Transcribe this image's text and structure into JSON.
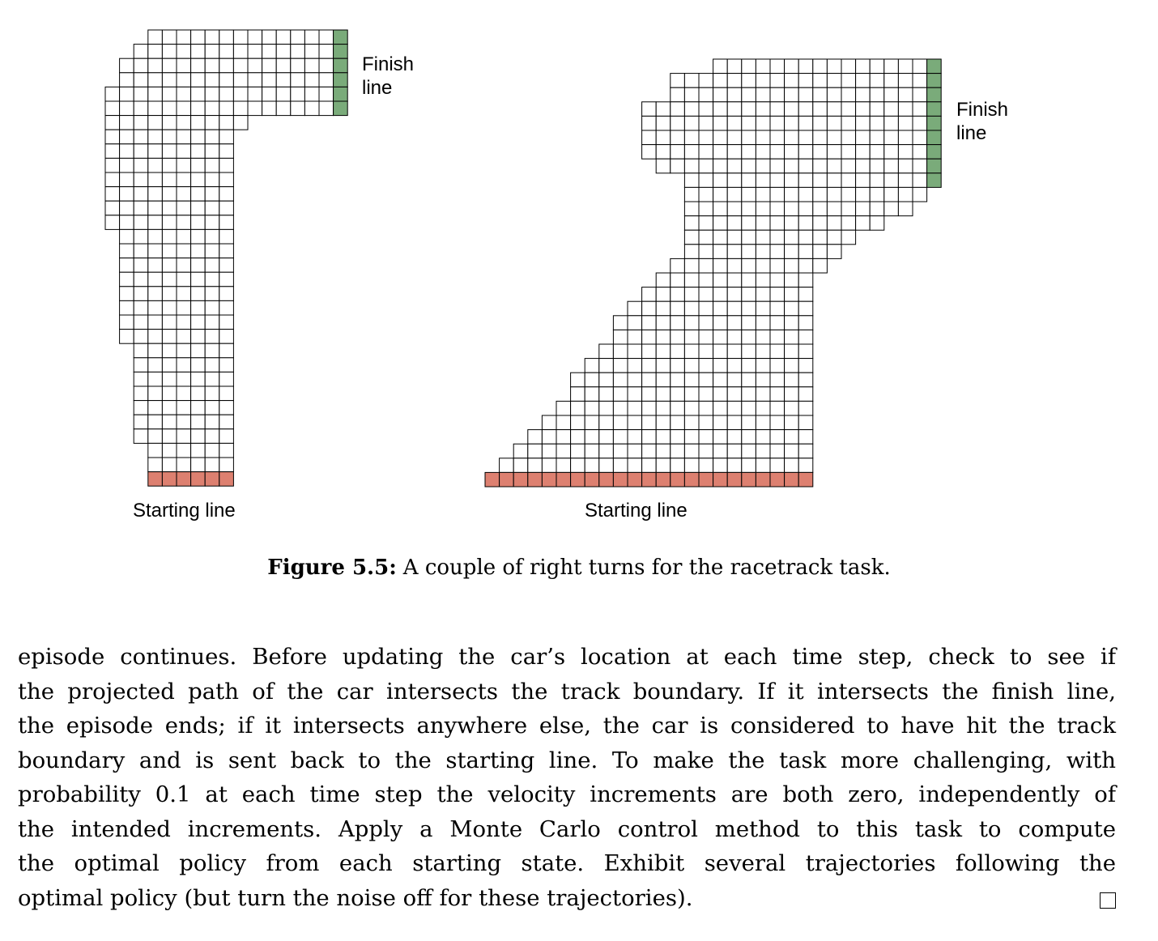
{
  "figure": {
    "tracks": [
      {
        "finish_label": "Finish\nline",
        "start_label": "Starting line",
        "finish_color": "#7aab7a",
        "start_color": "#dd8070"
      },
      {
        "finish_label": "Finish\nline",
        "start_label": "Starting line",
        "finish_color": "#7aab7a",
        "start_color": "#dd8070"
      }
    ]
  },
  "caption": {
    "label": "Figure 5.5:",
    "text": "A couple of right turns for the racetrack task."
  },
  "paragraph": {
    "lines": [
      "episode continues. Before updating the car’s location at each time step, check to see if",
      "the projected path of the car intersects the track boundary. If it intersects the finish line,",
      "the episode ends; if it intersects anywhere else, the car is considered to have hit the track",
      "boundary and is sent back to the starting line. To make the task more challenging, with",
      "probability 0.1 at each time step the velocity increments are both zero, independently of",
      "the intended increments. Apply a Monte Carlo control method to this task to compute",
      "the optimal policy from each starting state. Exhibit several trajectories following the",
      "optimal policy (but turn the noise off for these trajectories)."
    ]
  }
}
